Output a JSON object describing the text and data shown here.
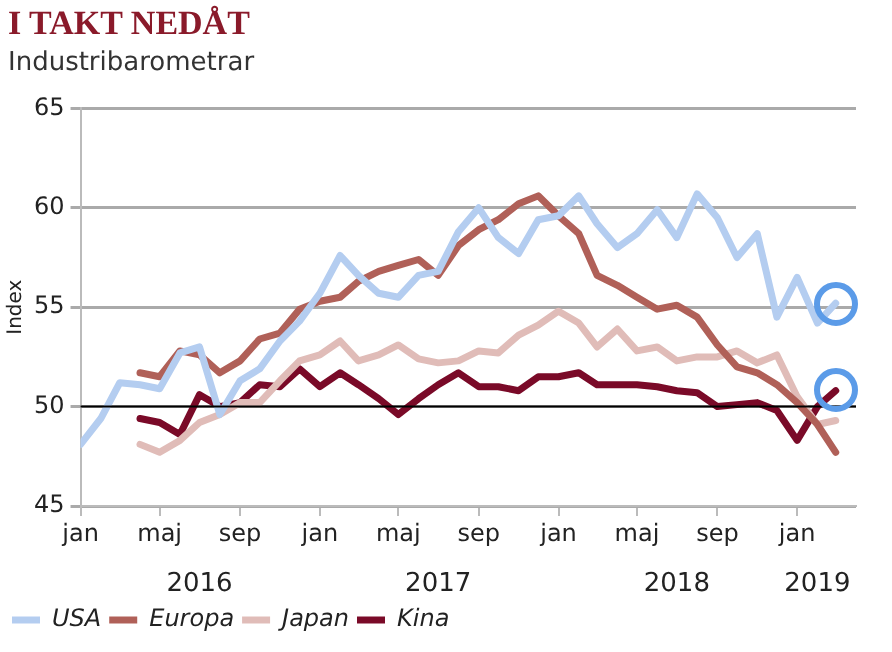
{
  "chart_data": {
    "type": "line",
    "title": "I TAKT NEDÅT",
    "subtitle": "Industribarometrar",
    "ylabel": "Index",
    "x": [
      "2016-01",
      "2016-02",
      "2016-03",
      "2016-04",
      "2016-05",
      "2016-06",
      "2016-07",
      "2016-08",
      "2016-09",
      "2016-10",
      "2016-11",
      "2016-12",
      "2017-01",
      "2017-02",
      "2017-03",
      "2017-04",
      "2017-05",
      "2017-06",
      "2017-07",
      "2017-08",
      "2017-09",
      "2017-10",
      "2017-11",
      "2017-12",
      "2018-01",
      "2018-02",
      "2018-03",
      "2018-04",
      "2018-05",
      "2018-06",
      "2018-07",
      "2018-08",
      "2018-09",
      "2018-10",
      "2018-11",
      "2018-12",
      "2019-01",
      "2019-02",
      "2019-03"
    ],
    "series": [
      {
        "name": "USA",
        "color": "#b4cdf0",
        "values": [
          48.1,
          49.4,
          51.2,
          51.1,
          50.9,
          52.7,
          53.0,
          49.6,
          51.3,
          51.9,
          53.3,
          54.3,
          55.7,
          57.6,
          56.6,
          55.7,
          55.5,
          56.6,
          56.8,
          58.8,
          60.0,
          58.5,
          57.7,
          59.4,
          59.6,
          60.6,
          59.2,
          58.0,
          58.7,
          59.9,
          58.5,
          60.7,
          59.5,
          57.5,
          58.7,
          54.5,
          56.5,
          54.2,
          55.2
        ]
      },
      {
        "name": "Europa",
        "color": "#b06058",
        "values": [
          null,
          null,
          null,
          51.7,
          51.5,
          52.8,
          52.6,
          51.7,
          52.3,
          53.4,
          53.7,
          54.9,
          55.3,
          55.5,
          56.3,
          56.8,
          57.1,
          57.4,
          56.6,
          58.1,
          58.9,
          59.4,
          60.2,
          60.6,
          59.6,
          58.7,
          56.6,
          56.1,
          55.5,
          54.9,
          55.1,
          54.5,
          53.1,
          52.0,
          51.7,
          51.1,
          50.2,
          49.1,
          47.7
        ]
      },
      {
        "name": "Japan",
        "color": "#e0bcb8",
        "values": [
          null,
          null,
          null,
          48.1,
          47.7,
          48.3,
          49.2,
          49.6,
          50.2,
          50.2,
          51.3,
          52.3,
          52.6,
          53.3,
          52.3,
          52.6,
          53.1,
          52.4,
          52.2,
          52.3,
          52.8,
          52.7,
          53.6,
          54.1,
          54.8,
          54.2,
          53.0,
          53.9,
          52.8,
          53.0,
          52.3,
          52.5,
          52.5,
          52.8,
          52.2,
          52.6,
          50.5,
          49.1,
          49.3
        ]
      },
      {
        "name": "Kina",
        "color": "#7a0a28",
        "values": [
          null,
          null,
          null,
          49.4,
          49.2,
          48.6,
          50.6,
          50.0,
          50.2,
          51.1,
          51.0,
          51.9,
          51.0,
          51.7,
          51.1,
          50.4,
          49.6,
          50.4,
          51.1,
          51.7,
          51.0,
          51.0,
          50.8,
          51.5,
          51.5,
          51.7,
          51.1,
          51.1,
          51.1,
          51.0,
          50.8,
          50.7,
          50.0,
          50.1,
          50.2,
          49.8,
          48.3,
          50.0,
          50.8
        ]
      }
    ],
    "xlim": [
      "2016-01",
      "2019-04"
    ],
    "xticks": [
      {
        "value": "2016-01",
        "label": "jan"
      },
      {
        "value": "2016-05",
        "label": "maj"
      },
      {
        "value": "2016-09",
        "label": "sep"
      },
      {
        "value": "2017-01",
        "label": "jan"
      },
      {
        "value": "2017-05",
        "label": "maj"
      },
      {
        "value": "2017-09",
        "label": "sep"
      },
      {
        "value": "2018-01",
        "label": "jan"
      },
      {
        "value": "2018-05",
        "label": "maj"
      },
      {
        "value": "2018-09",
        "label": "sep"
      },
      {
        "value": "2019-01",
        "label": "jan"
      }
    ],
    "x2lim": [
      "2016-01",
      "2019-04"
    ],
    "x2ticks": [
      {
        "value": "2016-07",
        "label": "2016"
      },
      {
        "value": "2017-07",
        "label": "2017"
      },
      {
        "value": "2018-07",
        "label": "2018"
      },
      {
        "value": "2019-02",
        "label": "2019"
      }
    ],
    "ylim": [
      45,
      65
    ],
    "yticks": [
      45,
      50,
      55,
      60,
      65
    ],
    "ref_lines": [
      {
        "axis": "y",
        "value": 50,
        "color": "#000000"
      }
    ],
    "grid": "y",
    "legend": "bottom left",
    "marker": "none",
    "line_style": "solid"
  }
}
